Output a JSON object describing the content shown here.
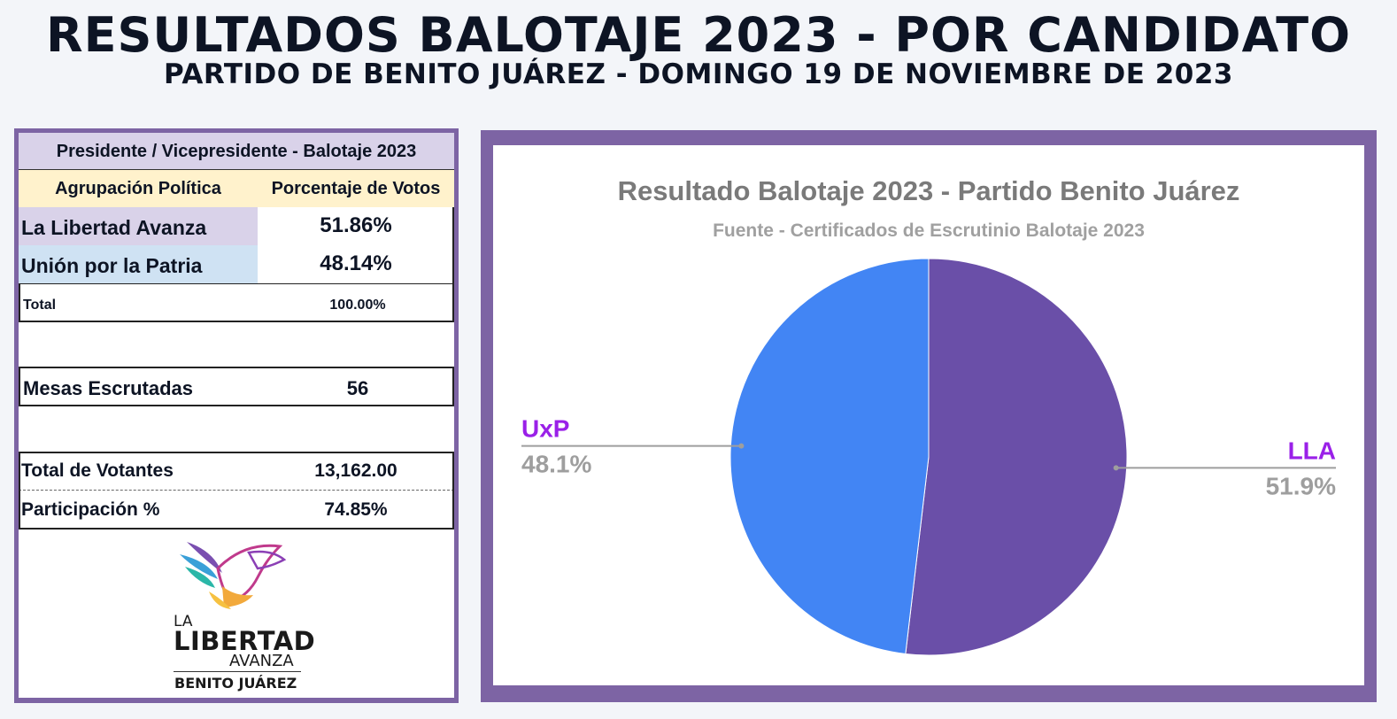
{
  "header": {
    "title": "RESULTADOS BALOTAJE 2023 - POR CANDIDATO",
    "subtitle": "PARTIDO DE BENITO JUÁREZ - DOMINGO 19 DE NOVIEMBRE DE 2023"
  },
  "table": {
    "title": "Presidente / Vicepresidente - Balotaje 2023",
    "col1_header": "Agrupación Política",
    "col2_header": "Porcentaje de Votos",
    "rows": [
      {
        "label": "La Libertad Avanza",
        "value": "51.86%",
        "color": "#d9d2e9"
      },
      {
        "label": "Unión por la Patria",
        "value": "48.14%",
        "color": "#cfe2f3"
      }
    ],
    "total_label": "Total",
    "total_value": "100.00%",
    "mesas_label": "Mesas Escrutadas",
    "mesas_value": "56",
    "votantes_label": "Total de Votantes",
    "votantes_value": "13,162.00",
    "participacion_label": "Participación %",
    "participacion_value": "74.85%"
  },
  "logo": {
    "icon": "eagle-logo-icon",
    "line1": "LA",
    "line2": "LIBERTAD",
    "line3": "AVANZA",
    "line4": "BENITO JUÁREZ"
  },
  "chart_data": {
    "type": "pie",
    "title": "Resultado Balotaje 2023 - Partido Benito Juárez",
    "subtitle": "Fuente - Certificados de Escrutinio Balotaje 2023",
    "slices": [
      {
        "name": "LLA",
        "value": 51.86,
        "label": "51.9%",
        "color": "#6a4fa8",
        "label_color": "#9a20e8"
      },
      {
        "name": "UxP",
        "value": 48.14,
        "label": "48.1%",
        "color": "#4285f4",
        "label_color": "#9a20e8"
      }
    ],
    "percent_label_color": "#9e9e9e",
    "title_color": "#7a7a7a",
    "subtitle_color": "#a0a0a0"
  },
  "colors": {
    "panel_border": "#7d64a4",
    "background": "#f3f5f9",
    "header_fill": "#fff2cc"
  }
}
